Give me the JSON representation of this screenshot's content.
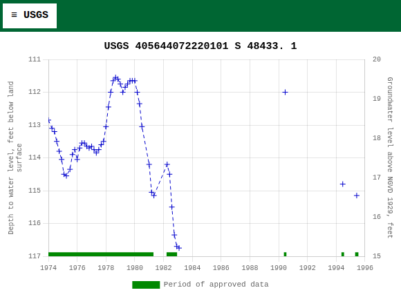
{
  "chart_data": {
    "type": "line",
    "title": "USGS 405644072220101 S 48433. 1",
    "annotations": [
      "≡ USGS"
    ],
    "ylabel": "Depth to water level, feet below land\nsurface",
    "y2label": "Groundwater level above NGVD 1929, feet",
    "xlim": [
      1974,
      1996
    ],
    "xticks": [
      1974,
      1976,
      1978,
      1980,
      1982,
      1984,
      1986,
      1988,
      1990,
      1992,
      1994,
      1996
    ],
    "ylim": [
      117.0,
      111.0
    ],
    "yticks": [
      111.0,
      112.0,
      113.0,
      114.0,
      115.0,
      116.0,
      117.0
    ],
    "y2lim": [
      15.0,
      20.0
    ],
    "y2ticks": [
      15.0,
      16.0,
      17.0,
      18.0,
      19.0,
      20.0
    ],
    "grid": true,
    "legend": "bottom",
    "series": [
      {
        "type": "line",
        "color": "#0000cc",
        "line_style": "dashed",
        "marker": "plus",
        "x": [
          1974.0,
          1974.25,
          1974.42,
          1974.58,
          1974.75,
          1974.92,
          1975.08,
          1975.25,
          1975.5,
          1975.67,
          1975.83,
          1976.0,
          1976.17,
          1976.33,
          1976.5,
          1976.67,
          1976.83,
          1977.0,
          1977.17,
          1977.33,
          1977.5,
          1977.67,
          1977.83,
          1978.0,
          1978.17,
          1978.33,
          1978.5,
          1978.67,
          1978.83,
          1979.0,
          1979.17,
          1979.33,
          1979.5,
          1979.67,
          1979.83,
          1980.0,
          1980.17,
          1980.33,
          1980.5,
          1981.0,
          1981.17,
          1981.33,
          1982.25,
          1982.42,
          1982.58,
          1982.75,
          1982.92,
          1983.08
        ],
        "values": [
          112.85,
          113.1,
          113.2,
          113.5,
          113.8,
          114.05,
          114.5,
          114.55,
          114.35,
          113.9,
          113.75,
          114.05,
          113.7,
          113.55,
          113.55,
          113.65,
          113.7,
          113.65,
          113.75,
          113.85,
          113.75,
          113.6,
          113.5,
          113.05,
          112.45,
          112.0,
          111.65,
          111.55,
          111.6,
          111.75,
          112.0,
          111.85,
          111.75,
          111.65,
          111.65,
          111.65,
          112.0,
          112.35,
          113.05,
          114.2,
          115.05,
          115.15,
          114.2,
          114.5,
          115.5,
          116.35,
          116.7,
          116.75
        ]
      },
      {
        "type": "scatter",
        "color": "#0000cc",
        "marker": "plus",
        "x": [
          1990.45,
          1994.45,
          1995.42
        ],
        "values": [
          112.0,
          114.8,
          115.15
        ]
      },
      {
        "name": "Period of approved data",
        "type": "area",
        "color": "#008800",
        "x_ranges": [
          [
            1974.0,
            1981.3
          ],
          [
            1982.2,
            1982.95
          ],
          [
            1990.35,
            1990.55
          ],
          [
            1994.35,
            1994.55
          ],
          [
            1995.3,
            1995.55
          ]
        ],
        "y_range": [
          117.0,
          116.88
        ]
      }
    ]
  }
}
